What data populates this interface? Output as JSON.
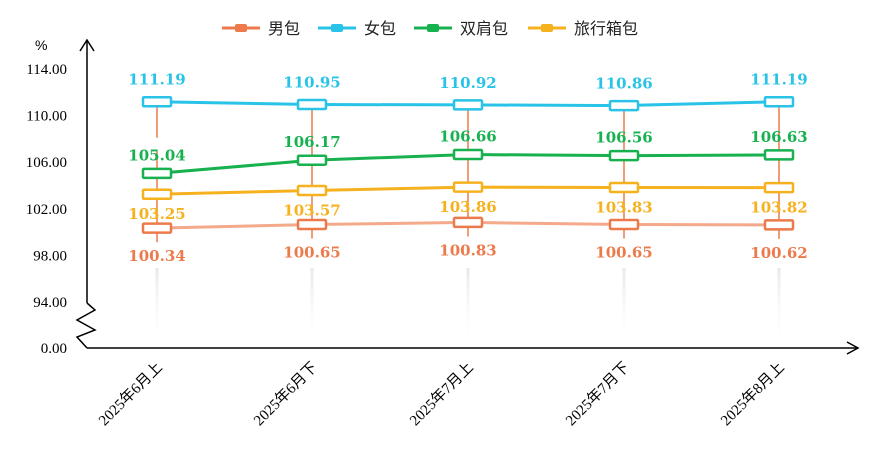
{
  "chart_data": {
    "type": "line",
    "ylabel": "%",
    "ylim": [
      94,
      114
    ],
    "y_ticks": [
      "114.00",
      "110.00",
      "106.00",
      "102.00",
      "98.00",
      "94.00",
      "0.00"
    ],
    "axis_break": "between 94.00 and 0.00",
    "legend_position": "top",
    "grid": false,
    "categories": [
      "2025年6月上",
      "2025年6月下",
      "2025年7月上",
      "2025年7月下",
      "2025年8月上"
    ],
    "series": [
      {
        "name": "男包",
        "color": "#ec7a4b",
        "line_color": "#f4a98a",
        "values": [
          100.34,
          100.65,
          100.83,
          100.65,
          100.62
        ],
        "labels": [
          "100.34",
          "100.65",
          "100.83",
          "100.65",
          "100.62"
        ]
      },
      {
        "name": "女包",
        "color": "#29c3e8",
        "line_color": "#29c3e8",
        "values": [
          111.19,
          110.95,
          110.92,
          110.86,
          111.19
        ],
        "labels": [
          "111.19",
          "110.95",
          "110.92",
          "110.86",
          "111.19"
        ]
      },
      {
        "name": "双肩包",
        "color": "#18b150",
        "line_color": "#18b150",
        "values": [
          105.04,
          106.17,
          106.66,
          106.56,
          106.63
        ],
        "labels": [
          "105.04",
          "106.17",
          "106.66",
          "106.56",
          "106.63"
        ]
      },
      {
        "name": "旅行箱包",
        "color": "#f6b11e",
        "line_color": "#f6b11e",
        "values": [
          103.25,
          103.57,
          103.86,
          103.83,
          103.82
        ],
        "labels": [
          "103.25",
          "103.57",
          "103.86",
          "103.83",
          "103.82"
        ]
      }
    ]
  }
}
